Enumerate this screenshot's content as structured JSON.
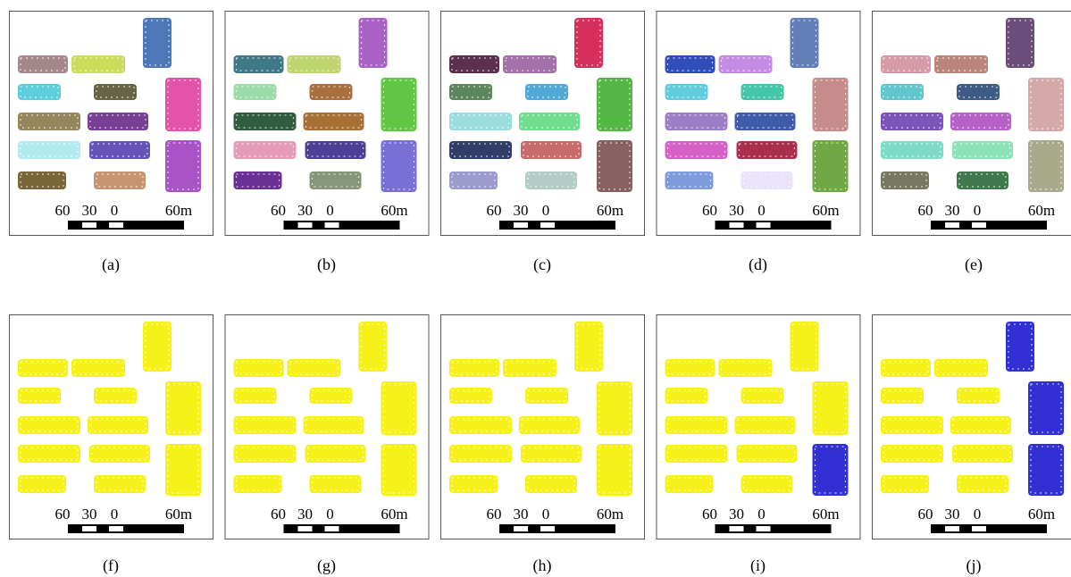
{
  "panels": [
    {
      "caption": "(a)",
      "scale_labels": [
        "60",
        "30",
        "0",
        "60m"
      ]
    },
    {
      "caption": "(b)",
      "scale_labels": [
        "60",
        "30",
        "0",
        "60m"
      ]
    },
    {
      "caption": "(c)",
      "scale_labels": [
        "60",
        "30",
        "0",
        "60m"
      ]
    },
    {
      "caption": "(d)",
      "scale_labels": [
        "60",
        "30",
        "0",
        "60m"
      ]
    },
    {
      "caption": "(e)",
      "scale_labels": [
        "60",
        "30",
        "0",
        "60m"
      ]
    },
    {
      "caption": "(f)",
      "scale_labels": [
        "60",
        "30",
        "0",
        "60m"
      ]
    },
    {
      "caption": "(g)",
      "scale_labels": [
        "60",
        "30",
        "0",
        "60m"
      ]
    },
    {
      "caption": "(h)",
      "scale_labels": [
        "60",
        "30",
        "0",
        "60m"
      ]
    },
    {
      "caption": "(i)",
      "scale_labels": [
        "60",
        "30",
        "0",
        "60m"
      ]
    },
    {
      "caption": "(j)",
      "scale_labels": [
        "60",
        "30",
        "0",
        "60m"
      ]
    }
  ]
}
